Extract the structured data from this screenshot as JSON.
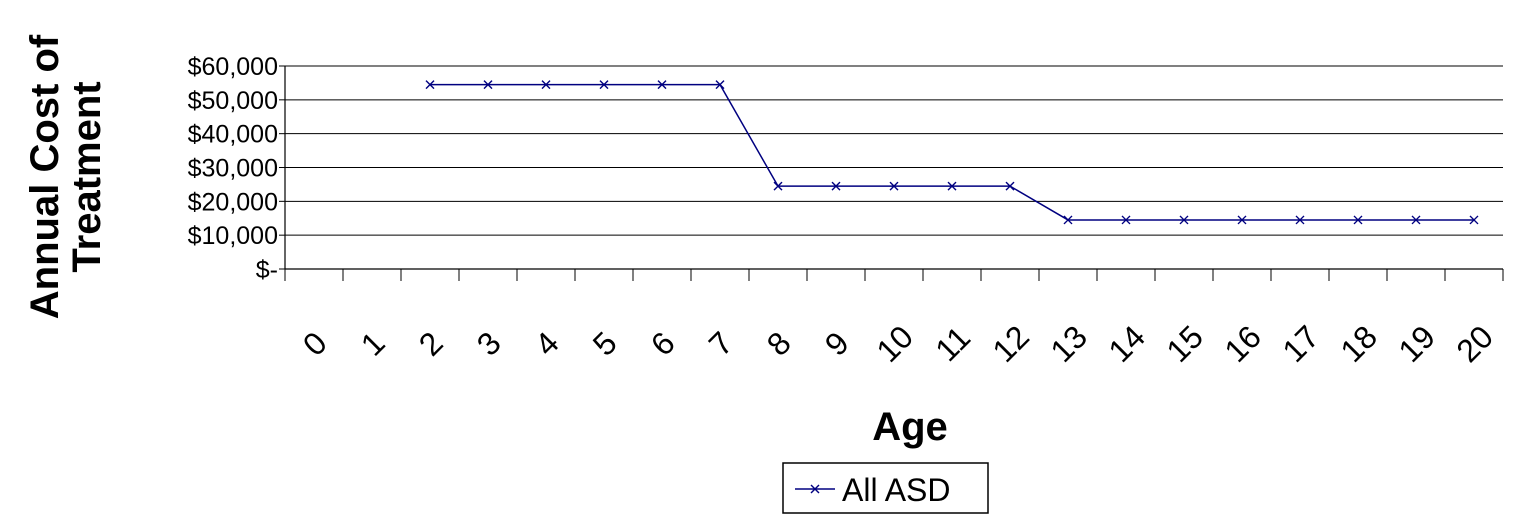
{
  "chart_data": {
    "type": "line",
    "title": "",
    "xlabel": "Age",
    "ylabel_lines": [
      "Annual Cost of",
      "Treatment"
    ],
    "categories": [
      "0",
      "1",
      "2",
      "3",
      "4",
      "5",
      "6",
      "7",
      "8",
      "9",
      "10",
      "11",
      "12",
      "13",
      "14",
      "15",
      "16",
      "17",
      "18",
      "19",
      "20"
    ],
    "ylim": [
      0,
      60000
    ],
    "yticks": [
      0,
      10000,
      20000,
      30000,
      40000,
      50000,
      60000
    ],
    "ytick_labels": [
      "$-",
      "$10,000",
      "$20,000",
      "$30,000",
      "$40,000",
      "$50,000",
      "$60,000"
    ],
    "grid": "horizontal",
    "legend": "bottom",
    "series": [
      {
        "name": "All ASD",
        "color": "#000080",
        "marker": "x",
        "values": [
          null,
          null,
          54500,
          54500,
          54500,
          54500,
          54500,
          54500,
          24500,
          24500,
          24500,
          24500,
          24500,
          14500,
          14500,
          14500,
          14500,
          14500,
          14500,
          14500,
          14500
        ]
      }
    ]
  }
}
